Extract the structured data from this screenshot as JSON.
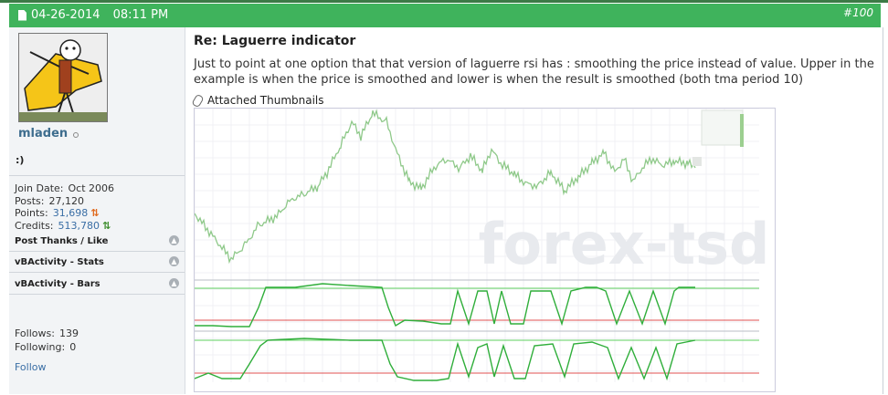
{
  "post": {
    "date": "04-26-2014",
    "time": "08:11 PM",
    "number": "#100",
    "title": "Re: Laguerre indicator",
    "body": "Just to point at one option that that version of laguerre rsi has : smoothing the price instead of value. Upper in the example is when the price is smoothed and lower is when the result is smoothed (both tma period 10)",
    "attachments_label": "Attached Thumbnails"
  },
  "user": {
    "name": "mladen",
    "title": ":)",
    "join_label": "Join Date:",
    "join_value": "Oct 2006",
    "posts_label": "Posts:",
    "posts_value": "27,120",
    "points_label": "Points:",
    "points_value": "31,698",
    "credits_label": "Credits:",
    "credits_value": "513,780",
    "follows_label": "Follows:",
    "follows_value": "139",
    "following_label": "Following:",
    "following_value": "0",
    "follow_link": "Follow"
  },
  "sections": {
    "thanks": "Post Thanks / Like",
    "stats": "vBActivity - Stats",
    "bars": "vBActivity - Bars"
  },
  "watermark": "forex-tsd",
  "colors": {
    "header": "#3fb35c",
    "price_line": "#8fc98a",
    "indicator_line": "#2fae3a",
    "level_red": "#e05050",
    "level_green": "#5fd05f"
  }
}
